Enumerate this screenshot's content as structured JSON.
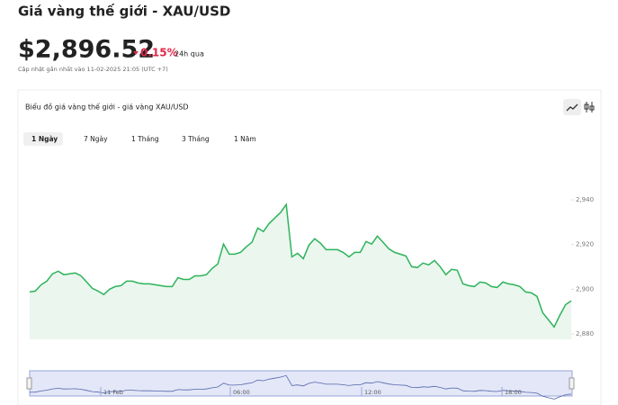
{
  "header": {
    "title": "Giá vàng thế giới - XAU/USD",
    "price": "$2,896.52",
    "change": "0.15%",
    "change_period": "24h qua",
    "updated": "Cập nhật gần nhất vào 11-02-2025 21:05 (UTC +7)"
  },
  "tabs": [
    "1 Ngày",
    "7 Ngày",
    "1 Tháng",
    "3 Tháng",
    "1 Năm"
  ],
  "navigator": {
    "labels": [
      "11 Feb",
      "06:00",
      "12:00",
      "18:00"
    ]
  },
  "chart_data": {
    "type": "area",
    "title": "Biểu đồ giá vàng thế giới - giá vàng XAU/USD",
    "color": "#2eb35a",
    "fill": "#eaf6ee",
    "values": [
      2898.8,
      2899.2,
      2902.0,
      2903.6,
      2906.9,
      2908.1,
      2906.5,
      2906.9,
      2907.3,
      2906.0,
      2903.2,
      2900.4,
      2899.2,
      2897.6,
      2900.0,
      2901.2,
      2901.6,
      2903.6,
      2903.6,
      2902.8,
      2902.4,
      2902.4,
      2902.0,
      2901.6,
      2901.2,
      2901.2,
      2905.2,
      2904.4,
      2904.4,
      2906.0,
      2906.0,
      2906.5,
      2909.3,
      2911.3,
      2920.2,
      2915.7,
      2915.7,
      2916.5,
      2919.0,
      2921.0,
      2927.4,
      2925.8,
      2929.4,
      2931.9,
      2934.3,
      2937.9,
      2914.5,
      2916.1,
      2913.7,
      2919.8,
      2922.6,
      2920.6,
      2917.7,
      2917.7,
      2917.7,
      2916.5,
      2914.5,
      2916.5,
      2916.5,
      2921.4,
      2920.2,
      2923.8,
      2921.0,
      2918.1,
      2916.5,
      2915.7,
      2914.9,
      2910.1,
      2909.7,
      2911.7,
      2910.9,
      2912.9,
      2910.1,
      2906.5,
      2908.9,
      2908.5,
      2902.4,
      2901.6,
      2901.2,
      2903.2,
      2902.8,
      2901.2,
      2900.8,
      2903.2,
      2902.4,
      2902.0,
      2901.2,
      2898.8,
      2898.4,
      2896.8,
      2889.5,
      2886.3,
      2883.1,
      2888.3,
      2893.1,
      2894.8
    ],
    "ylim": [
      2877.6,
      2965
    ],
    "yticks": [
      {
        "value": 2880,
        "label": "2,880"
      },
      {
        "value": 2900,
        "label": "2,900"
      },
      {
        "value": 2920,
        "label": "2,920"
      },
      {
        "value": 2940,
        "label": "2,940"
      }
    ],
    "grid": false
  }
}
